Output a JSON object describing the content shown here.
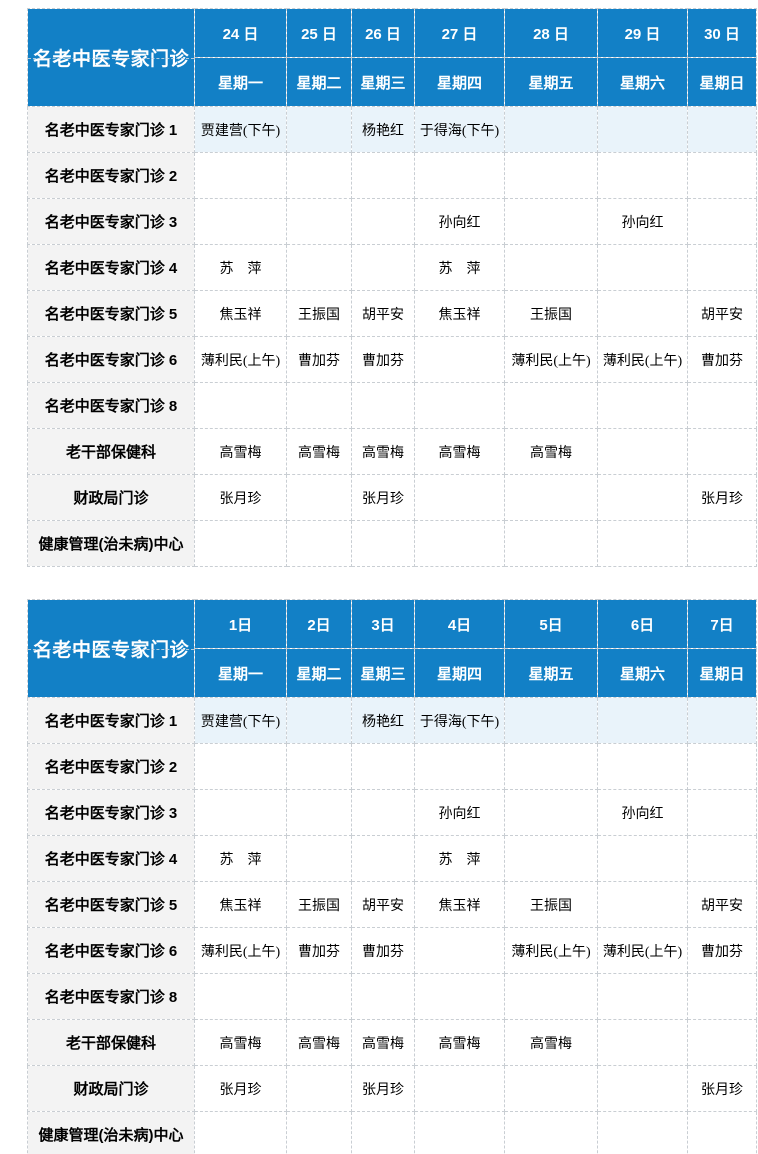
{
  "colors": {
    "header_bg": "#1280c6",
    "header_text": "#ffffff",
    "row_label_bg": "#f3f3f3",
    "highlight_row_bg": "#e9f3fa",
    "cell_bg": "#ffffff",
    "border": "#c9ced3",
    "text": "#000000"
  },
  "tables": [
    {
      "corner_label": "名老中医专家门诊",
      "dates": [
        "24 日",
        "25 日",
        "26 日",
        "27 日",
        "28 日",
        "29 日",
        "30 日"
      ],
      "weekdays": [
        "星期一",
        "星期二",
        "星期三",
        "星期四",
        "星期五",
        "星期六",
        "星期日"
      ],
      "rows": [
        {
          "label": "名老中医专家门诊 1",
          "highlight": true,
          "cells": [
            "贾建营(下午)",
            "",
            "杨艳红",
            "于得海(下午)",
            "",
            "",
            ""
          ]
        },
        {
          "label": "名老中医专家门诊 2",
          "highlight": false,
          "cells": [
            "",
            "",
            "",
            "",
            "",
            "",
            ""
          ]
        },
        {
          "label": "名老中医专家门诊 3",
          "highlight": false,
          "cells": [
            "",
            "",
            "",
            "孙向红",
            "",
            "孙向红",
            ""
          ]
        },
        {
          "label": "名老中医专家门诊 4",
          "highlight": false,
          "cells": [
            "苏　萍",
            "",
            "",
            "苏　萍",
            "",
            "",
            ""
          ]
        },
        {
          "label": "名老中医专家门诊 5",
          "highlight": false,
          "cells": [
            "焦玉祥",
            "王振国",
            "胡平安",
            "焦玉祥",
            "王振国",
            "",
            "胡平安"
          ]
        },
        {
          "label": "名老中医专家门诊 6",
          "highlight": false,
          "cells": [
            "薄利民(上午)",
            "曹加芬",
            "曹加芬",
            "",
            "薄利民(上午)",
            "薄利民(上午)",
            "曹加芬"
          ]
        },
        {
          "label": "名老中医专家门诊 8",
          "highlight": false,
          "cells": [
            "",
            "",
            "",
            "",
            "",
            "",
            ""
          ]
        },
        {
          "label": "老干部保健科",
          "highlight": false,
          "cells": [
            "高雪梅",
            "高雪梅",
            "高雪梅",
            "高雪梅",
            "高雪梅",
            "",
            ""
          ]
        },
        {
          "label": "财政局门诊",
          "highlight": false,
          "cells": [
            "张月珍",
            "",
            "张月珍",
            "",
            "",
            "",
            "张月珍"
          ]
        },
        {
          "label": "健康管理(治未病)中心",
          "highlight": false,
          "cells": [
            "",
            "",
            "",
            "",
            "",
            "",
            ""
          ]
        }
      ]
    },
    {
      "corner_label": "名老中医专家门诊",
      "dates": [
        "1日",
        "2日",
        "3日",
        "4日",
        "5日",
        "6日",
        "7日"
      ],
      "weekdays": [
        "星期一",
        "星期二",
        "星期三",
        "星期四",
        "星期五",
        "星期六",
        "星期日"
      ],
      "rows": [
        {
          "label": "名老中医专家门诊 1",
          "highlight": true,
          "cells": [
            "贾建营(下午)",
            "",
            "杨艳红",
            "于得海(下午)",
            "",
            "",
            ""
          ]
        },
        {
          "label": "名老中医专家门诊 2",
          "highlight": false,
          "cells": [
            "",
            "",
            "",
            "",
            "",
            "",
            ""
          ]
        },
        {
          "label": "名老中医专家门诊 3",
          "highlight": false,
          "cells": [
            "",
            "",
            "",
            "孙向红",
            "",
            "孙向红",
            ""
          ]
        },
        {
          "label": "名老中医专家门诊 4",
          "highlight": false,
          "cells": [
            "苏　萍",
            "",
            "",
            "苏　萍",
            "",
            "",
            ""
          ]
        },
        {
          "label": "名老中医专家门诊 5",
          "highlight": false,
          "cells": [
            "焦玉祥",
            "王振国",
            "胡平安",
            "焦玉祥",
            "王振国",
            "",
            "胡平安"
          ]
        },
        {
          "label": "名老中医专家门诊 6",
          "highlight": false,
          "cells": [
            "薄利民(上午)",
            "曹加芬",
            "曹加芬",
            "",
            "薄利民(上午)",
            "薄利民(上午)",
            "曹加芬"
          ]
        },
        {
          "label": "名老中医专家门诊 8",
          "highlight": false,
          "cells": [
            "",
            "",
            "",
            "",
            "",
            "",
            ""
          ]
        },
        {
          "label": "老干部保健科",
          "highlight": false,
          "cells": [
            "高雪梅",
            "高雪梅",
            "高雪梅",
            "高雪梅",
            "高雪梅",
            "",
            ""
          ]
        },
        {
          "label": "财政局门诊",
          "highlight": false,
          "cells": [
            "张月珍",
            "",
            "张月珍",
            "",
            "",
            "",
            "张月珍"
          ]
        },
        {
          "label": "健康管理(治未病)中心",
          "highlight": false,
          "cells": [
            "",
            "",
            "",
            "",
            "",
            "",
            ""
          ]
        }
      ]
    }
  ]
}
